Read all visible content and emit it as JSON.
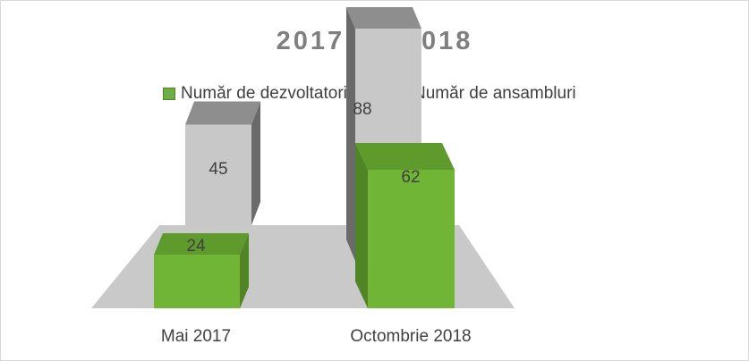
{
  "chart_data": {
    "type": "bar",
    "title": "2017 VS 2018",
    "categories": [
      "Mai 2017",
      "Octombrie 2018"
    ],
    "series": [
      {
        "name": "Număr de dezvoltatori",
        "values": [
          24,
          62
        ]
      },
      {
        "name": "Număr de ansambluri",
        "values": [
          45,
          88
        ]
      }
    ],
    "xlabel": "",
    "ylabel": "",
    "ylim": [
      0,
      100
    ],
    "grid": false,
    "legend_position": "top",
    "data_labels": true,
    "three_d": true,
    "colors": {
      "dev_front": "#70b535",
      "dev_top": "#5e9a2c",
      "dev_side": "#4f8524",
      "dev_swatch": "#70ad47",
      "ans_front": "#c8c8c8",
      "ans_top": "#8e8e8e",
      "ans_side": "#6a6a6a",
      "ans_swatch": "#a5a5a5",
      "floor": "#c9c9c9",
      "title": "#7f7f7f"
    }
  }
}
